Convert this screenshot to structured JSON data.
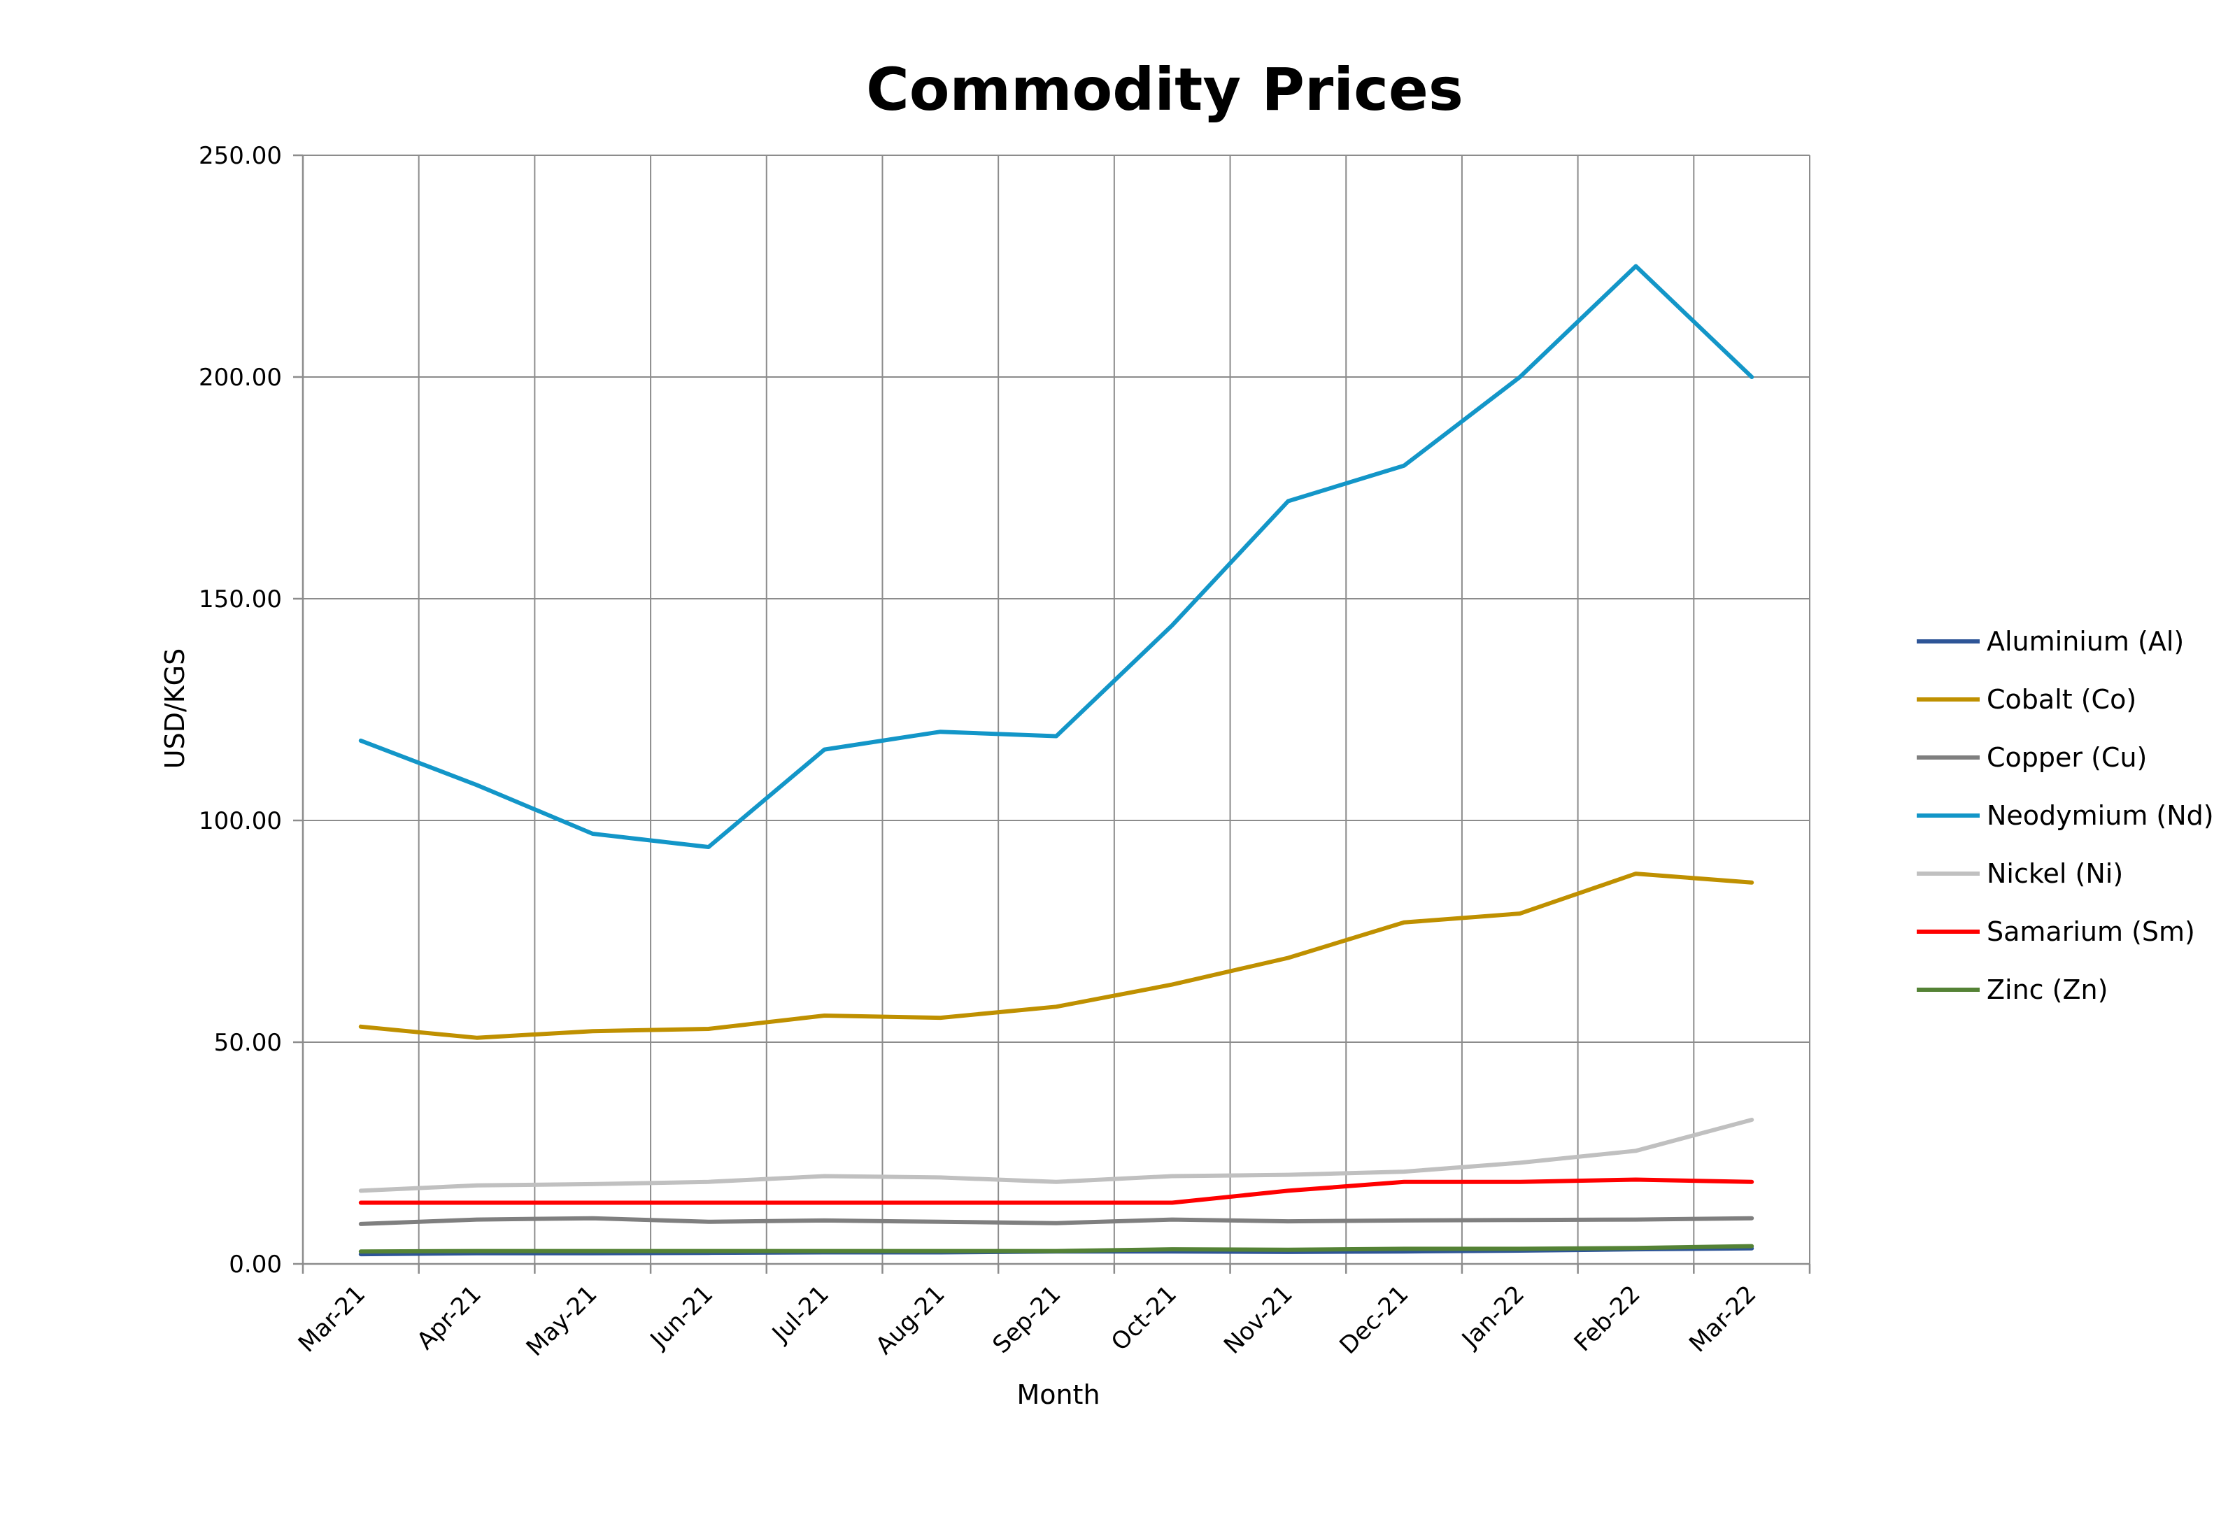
{
  "chart_data": {
    "type": "line",
    "title": "Commodity Prices",
    "xlabel": "Month",
    "ylabel": "USD/KGS",
    "ylim": [
      0,
      250
    ],
    "yticks": [
      "0.00",
      "50.00",
      "100.00",
      "150.00",
      "200.00",
      "250.00"
    ],
    "categories": [
      "Mar-21",
      "Apr-21",
      "May-21",
      "Jun-21",
      "Jul-21",
      "Aug-21",
      "Sep-21",
      "Oct-21",
      "Nov-21",
      "Dec-21",
      "Jan-22",
      "Feb-22",
      "Mar-22"
    ],
    "grid": true,
    "legend_position": "right",
    "series": [
      {
        "name": "Aluminium (Al)",
        "color": "#2e5597",
        "values": [
          2.2,
          2.4,
          2.4,
          2.5,
          2.6,
          2.6,
          2.8,
          2.8,
          2.7,
          2.8,
          3.0,
          3.3,
          3.5
        ]
      },
      {
        "name": "Cobalt (Co)",
        "color": "#bf9000",
        "values": [
          53.5,
          51.0,
          52.5,
          53.0,
          56.0,
          55.5,
          58.0,
          63.0,
          69.0,
          77.0,
          79.0,
          88.0,
          86.0
        ]
      },
      {
        "name": "Copper (Cu)",
        "color": "#7f7f7f",
        "values": [
          9.0,
          10.0,
          10.3,
          9.5,
          9.8,
          9.5,
          9.2,
          10.0,
          9.6,
          9.8,
          9.9,
          10.0,
          10.3
        ]
      },
      {
        "name": "Neodymium (Nd)",
        "color": "#1396c8",
        "values": [
          118.0,
          108.0,
          97.0,
          94.0,
          116.0,
          120.0,
          119.0,
          144.0,
          172.0,
          180.0,
          200.0,
          225.0,
          200.0
        ]
      },
      {
        "name": "Nickel (Ni)",
        "color": "#c0c0c0",
        "values": [
          16.5,
          17.7,
          18.0,
          18.5,
          19.8,
          19.5,
          18.5,
          19.8,
          20.1,
          20.8,
          22.8,
          25.5,
          32.5
        ]
      },
      {
        "name": "Samarium (Sm)",
        "color": "#ff0000",
        "values": [
          13.8,
          13.8,
          13.8,
          13.8,
          13.8,
          13.8,
          13.8,
          13.8,
          16.5,
          18.5,
          18.5,
          19.0,
          18.5
        ]
      },
      {
        "name": "Zinc (Zn)",
        "color": "#548235",
        "values": [
          2.8,
          2.9,
          2.9,
          2.9,
          2.9,
          2.9,
          2.9,
          3.3,
          3.2,
          3.4,
          3.4,
          3.6,
          4.0
        ]
      }
    ]
  }
}
